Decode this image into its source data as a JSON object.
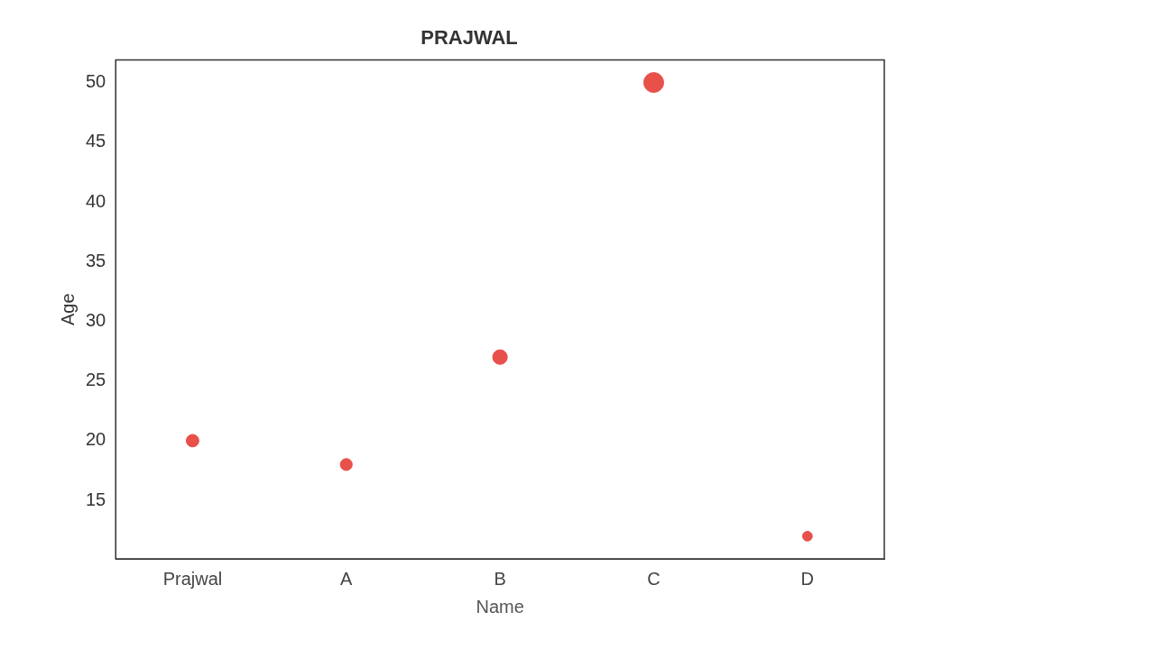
{
  "chart_data": {
    "type": "bubble",
    "title": "PRAJWAL",
    "xlabel": "Name",
    "ylabel": "Age",
    "categories": [
      "Prajwal",
      "A",
      "B",
      "C",
      "D"
    ],
    "values": [
      20,
      18,
      27,
      50,
      12
    ],
    "sizes": [
      0.4,
      0.36,
      0.54,
      1,
      0.24
    ],
    "color": "#e8504a",
    "ylim": [
      10.1,
      51.9
    ],
    "yticks": [
      15,
      20,
      25,
      30,
      35,
      40,
      45,
      50
    ],
    "grid": false,
    "legend": false
  }
}
